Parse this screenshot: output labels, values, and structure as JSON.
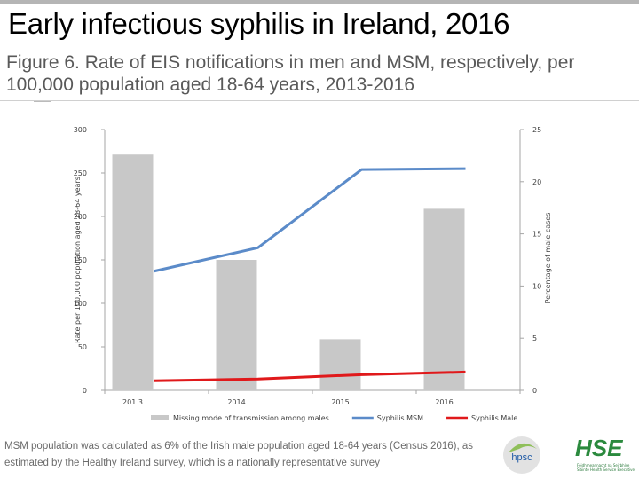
{
  "header": {
    "title": "Early infectious syphilis in Ireland, 2016",
    "subtitle": "Figure 6. Rate of EIS notifications in men and MSM, respectively, per 100,000 population aged 18-64 years, 2013-2016"
  },
  "footnote": "MSM population was calculated as 6% of the Irish male population aged 18-64 years (Census 2016), as estimated by the Healthy Ireland survey, which is a nationally representative survey",
  "logos": {
    "hpsc": "hpsc",
    "hse": "HSE",
    "hse_caption": "Feidhmeannacht na Seirbhíse Sláinte Health Service Executive"
  },
  "chart_data": {
    "type": "bar",
    "categories": [
      "2013",
      "2014",
      "2015",
      "2016"
    ],
    "x_tick_labels": [
      "201 3",
      "2014",
      "2015",
      "2016"
    ],
    "xlabel": "",
    "ylabel": "Rate per 100,000 population aged 18-64 years",
    "y2label": "Percentage of male cases",
    "ylim": [
      0,
      300
    ],
    "yticks": [
      0,
      50,
      100,
      150,
      200,
      250,
      300
    ],
    "y2lim": [
      0,
      25
    ],
    "y2ticks": [
      0,
      5,
      10,
      15,
      20,
      25
    ],
    "grid": false,
    "legend_position": "bottom",
    "series": [
      {
        "name": "Missing mode of transmission among males",
        "type": "bar",
        "axis": "right",
        "color": "#c8c8c8",
        "values": [
          22.6,
          12.5,
          4.9,
          17.4
        ]
      },
      {
        "name": "Syphilis MSM",
        "type": "line",
        "axis": "left",
        "color": "#5b8bc9",
        "values": [
          137,
          164,
          254,
          255
        ]
      },
      {
        "name": "Syphilis Male",
        "type": "line",
        "axis": "left",
        "color": "#e0191b",
        "values": [
          11,
          13,
          18,
          21
        ]
      }
    ]
  }
}
